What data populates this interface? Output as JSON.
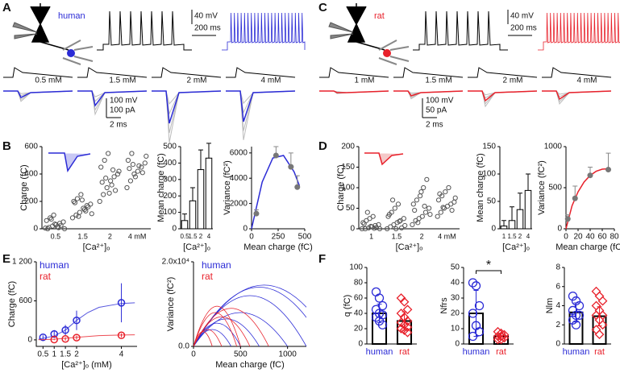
{
  "figure": {
    "panels": [
      "A",
      "B",
      "C",
      "D",
      "E",
      "F"
    ],
    "human": {
      "name": "human",
      "scale_v": "40 mV",
      "scale_t": "200 ms",
      "concentrations": [
        "0.5 mM",
        "1.5 mM",
        "2 mM",
        "4 mM"
      ],
      "scale_v2": "100 mV",
      "scale_i": "100 pA",
      "scale_t2": "2 ms"
    },
    "rat": {
      "name": "rat",
      "scale_v": "40 mV",
      "scale_t": "200 ms",
      "concentrations": [
        "1 mM",
        "1.5 mM",
        "2 mM",
        "4 mM"
      ],
      "scale_v2": "100 mV",
      "scale_i": "50 pA",
      "scale_t2": "2 ms"
    }
  },
  "chart_data": [
    {
      "type": "strip",
      "y_label": "Charge (fC)",
      "x_label": "[Ca²⁺]ₒ",
      "categories": [
        "0.5",
        "1.5",
        "2",
        "4 mM"
      ],
      "ylim": [
        0,
        600
      ],
      "yticks": [
        0,
        200,
        400,
        600
      ],
      "color": "#555555",
      "values": [
        [
          5,
          10,
          20,
          30,
          40,
          50,
          60,
          80,
          100,
          15,
          25,
          0,
          0,
          70,
          35,
          8
        ],
        [
          80,
          100,
          120,
          150,
          170,
          180,
          200,
          220,
          250,
          140,
          160,
          110,
          190,
          90,
          210,
          130
        ],
        [
          200,
          250,
          300,
          350,
          380,
          400,
          450,
          500,
          550,
          320,
          280,
          420,
          340,
          370,
          260,
          430
        ],
        [
          300,
          350,
          400,
          420,
          450,
          480,
          500,
          550,
          380,
          460,
          410,
          530,
          440,
          470
        ]
      ]
    },
    {
      "type": "bar",
      "y_label": "Mean charge (fC)",
      "x_label": "[Ca²⁺]ₒ",
      "categories": [
        "0.5",
        "1.5",
        "2",
        "4"
      ],
      "values": [
        50,
        170,
        360,
        430
      ],
      "errors": [
        40,
        80,
        120,
        90
      ],
      "ylim": [
        0,
        500
      ],
      "yticks": [
        0,
        100,
        200,
        300,
        400,
        500
      ],
      "color": "#ffffff"
    },
    {
      "type": "scatter",
      "y_label": "Variance (fC²)",
      "x_label": "Mean charge (fC)",
      "x": [
        45,
        230,
        370,
        430
      ],
      "values": [
        1200,
        5800,
        4900,
        3300
      ],
      "errors": [
        300,
        700,
        1100,
        900
      ],
      "color": "#777777",
      "fit": {
        "color": "#2b2bd6",
        "x": [
          0,
          100,
          200,
          300,
          400,
          450
        ],
        "values": [
          0,
          3700,
          5600,
          5800,
          4500,
          3400
        ]
      },
      "xlim": [
        0,
        500
      ],
      "xticks": [
        0,
        250,
        500
      ],
      "ylim": [
        0,
        6500
      ],
      "yticks": [
        0,
        2000,
        4000,
        6000
      ]
    },
    {
      "type": "strip",
      "y_label": "Charge (fC)",
      "x_label": "[Ca²⁺]ₒ",
      "categories": [
        "1",
        "1.5",
        "2",
        "4 mM"
      ],
      "ylim": [
        0,
        200
      ],
      "yticks": [
        0,
        50,
        100,
        150,
        200
      ],
      "color": "#555555",
      "values": [
        [
          0,
          0,
          2,
          5,
          8,
          10,
          15,
          20,
          25,
          30,
          3,
          0,
          12,
          40,
          6,
          1
        ],
        [
          0,
          5,
          10,
          15,
          20,
          25,
          30,
          40,
          50,
          60,
          2,
          8,
          35,
          70,
          0,
          18
        ],
        [
          10,
          20,
          25,
          30,
          40,
          50,
          60,
          70,
          80,
          100,
          120,
          35,
          45,
          15,
          90,
          55
        ],
        [
          30,
          40,
          50,
          55,
          60,
          65,
          70,
          80,
          90,
          100,
          45,
          75,
          85,
          52
        ]
      ]
    },
    {
      "type": "bar",
      "y_label": "Mean charge (fC)",
      "x_label": "[Ca²⁺]ₒ",
      "categories": [
        "1",
        "1.5",
        "2",
        "4"
      ],
      "values": [
        5,
        15,
        35,
        70
      ],
      "errors": [
        10,
        25,
        30,
        30
      ],
      "ylim": [
        0,
        150
      ],
      "yticks": [
        0,
        50,
        100,
        150
      ],
      "color": "#ffffff"
    },
    {
      "type": "scatter",
      "y_label": "Variance (fC²)",
      "x_label": "Mean charge (fC)",
      "x": [
        3,
        15,
        40,
        70
      ],
      "values": [
        120,
        370,
        650,
        720
      ],
      "errors": [
        50,
        150,
        100,
        200
      ],
      "color": "#777777",
      "fit": {
        "color": "#e8212b",
        "x": [
          0,
          10,
          20,
          30,
          40,
          50,
          60,
          70
        ],
        "values": [
          0,
          280,
          450,
          570,
          650,
          700,
          725,
          730
        ]
      },
      "xlim": [
        0,
        80
      ],
      "xticks": [
        0,
        20,
        40,
        60,
        80
      ],
      "ylim": [
        0,
        1000
      ],
      "yticks": [
        0,
        500,
        1000
      ]
    },
    {
      "type": "line",
      "y_label": "Charge (fC)",
      "x_label": "[Ca²⁺]ₒ (mM)",
      "xlim": [
        0.2,
        4.7
      ],
      "xticks": [
        0.5,
        1,
        1.5,
        2,
        4
      ],
      "ylim": [
        -100,
        1200
      ],
      "yticks": [
        0,
        600,
        {
          "value": 1200,
          "label": "1 200"
        }
      ],
      "series": [
        {
          "name": "human",
          "color": "#2b2bd6",
          "x": [
            0.5,
            1,
            1.5,
            2,
            4
          ],
          "values": [
            40,
            90,
            150,
            300,
            570
          ],
          "errors": [
            30,
            60,
            80,
            150,
            300
          ],
          "fit": {
            "x": [
              0.3,
              1,
              1.5,
              2,
              2.5,
              3,
              4,
              4.6
            ],
            "values": [
              10,
              60,
              150,
              300,
              420,
              500,
              560,
              570
            ]
          }
        },
        {
          "name": "rat",
          "color": "#e8212b",
          "x": [
            1,
            1.5,
            2,
            4
          ],
          "values": [
            5,
            15,
            35,
            70
          ],
          "errors": [
            10,
            25,
            30,
            30
          ],
          "fit": {
            "x": [
              0.3,
              1,
              2,
              3,
              4,
              4.6
            ],
            "values": [
              2,
              10,
              40,
              65,
              75,
              78
            ]
          }
        }
      ]
    },
    {
      "type": "parabola",
      "y_label": "Variance (fC²)",
      "x_label": "Mean charge (fC)",
      "xlim": [
        0,
        1200
      ],
      "xticks": [
        0,
        500,
        1000
      ],
      "ylim": [
        0,
        20000
      ],
      "yticks": [
        {
          "value": 0,
          "label": "0.0"
        },
        {
          "value": 20000,
          "label": "2.0x10⁴"
        }
      ],
      "series": [
        {
          "name": "human",
          "color": "#2b2bd6",
          "peak_x": [
            750,
            700,
            600,
            500,
            350,
            250,
            200
          ],
          "peak": [
            14500,
            14000,
            12000,
            8000,
            6500,
            5500,
            4000
          ]
        },
        {
          "name": "rat",
          "color": "#e8212b",
          "peak_x": [
            400,
            250,
            230,
            300,
            150,
            100
          ],
          "peak": [
            9000,
            9500,
            8000,
            7000,
            4000,
            3500
          ]
        }
      ]
    },
    {
      "type": "bar",
      "y_label": "q (fC)",
      "categories": [
        "human",
        "rat"
      ],
      "colors": [
        "#2b2bd6",
        "#e8212b"
      ],
      "values": [
        40,
        30
      ],
      "errors": [
        12,
        12
      ],
      "ylim": [
        0,
        100
      ],
      "yticks": [
        0,
        20,
        40,
        60,
        80,
        100
      ],
      "color": "#ffffff",
      "points": [
        [
          68,
          60,
          50,
          45,
          40,
          38,
          35,
          30,
          25
        ],
        [
          60,
          55,
          45,
          40,
          35,
          30,
          28,
          25,
          22,
          20,
          18,
          15
        ]
      ]
    },
    {
      "type": "bar",
      "y_label": "Nfrs",
      "categories": [
        "human",
        "rat"
      ],
      "colors": [
        "#2b2bd6",
        "#e8212b"
      ],
      "values": [
        20,
        5
      ],
      "errors": [
        15,
        2
      ],
      "ylim": [
        0,
        50
      ],
      "yticks": [
        0,
        10,
        20,
        30,
        40,
        50
      ],
      "color": "#ffffff",
      "annotation": "*",
      "points": [
        [
          40,
          38,
          25,
          20,
          12,
          8,
          5
        ],
        [
          8,
          7,
          6,
          5,
          5,
          4,
          3,
          3
        ]
      ]
    },
    {
      "type": "bar",
      "y_label": "Nlm",
      "categories": [
        "human",
        "rat"
      ],
      "colors": [
        "#2b2bd6",
        "#e8212b"
      ],
      "values": [
        3.3,
        2.9
      ],
      "errors": [
        1,
        1
      ],
      "ylim": [
        0,
        8
      ],
      "yticks": [
        0,
        2,
        4,
        6,
        8
      ],
      "color": "#ffffff",
      "points": [
        [
          5,
          4.5,
          4,
          3.5,
          3,
          3,
          2.5,
          2
        ],
        [
          5.5,
          5,
          4.5,
          4,
          3.5,
          3,
          3,
          2.5,
          2,
          1.5,
          1
        ]
      ]
    }
  ]
}
